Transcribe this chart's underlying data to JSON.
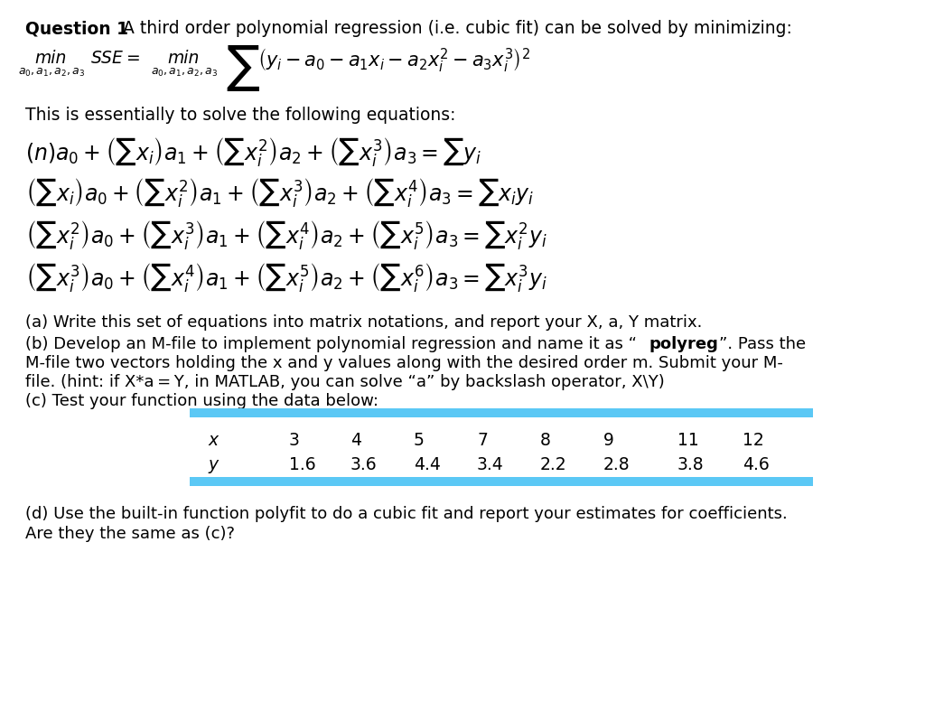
{
  "bg_color": "#ffffff",
  "bar_color": "#5bc8f5",
  "table_x": [
    "x",
    "3",
    "4",
    "5",
    "7",
    "8",
    "9",
    "11",
    "12"
  ],
  "table_y": [
    "y",
    "1.6",
    "3.6",
    "4.4",
    "3.4",
    "2.2",
    "2.8",
    "3.8",
    "4.6"
  ]
}
